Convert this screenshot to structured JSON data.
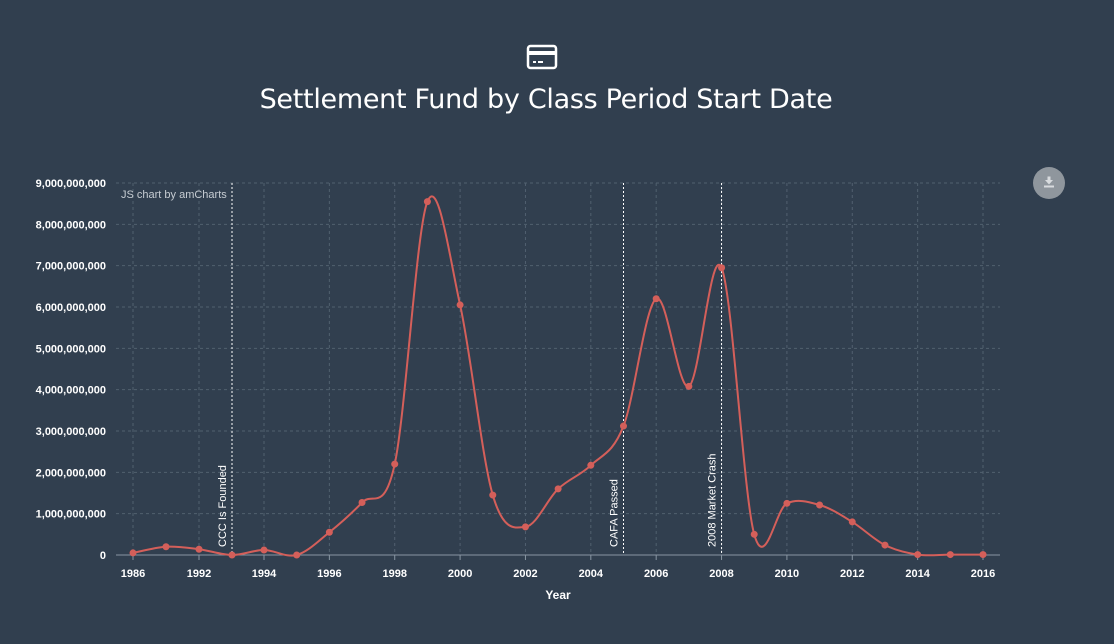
{
  "header": {
    "icon": "credit-card-icon",
    "title": "Settlement Fund by Class Period Start Date"
  },
  "toolbar": {
    "download_icon": "download-icon"
  },
  "credit_text": "JS chart by amCharts",
  "colors": {
    "background": "#313f4f",
    "line": "#d45f5a",
    "grid": "#51606f",
    "guide": "#ffffff"
  },
  "chart_data": {
    "type": "line",
    "title": "Settlement Fund by Class Period Start Date",
    "xlabel": "Year",
    "ylabel": "",
    "xlim": [
      1986,
      2016
    ],
    "ylim": [
      0,
      9000000000
    ],
    "smoothed": true,
    "grid": true,
    "x_ticks": [
      1986,
      1992,
      1994,
      1996,
      1998,
      2000,
      2002,
      2004,
      2006,
      2008,
      2010,
      2012,
      2014,
      2016
    ],
    "y_ticks": [
      0,
      1000000000,
      2000000000,
      3000000000,
      4000000000,
      5000000000,
      6000000000,
      7000000000,
      8000000000,
      9000000000
    ],
    "y_tick_labels": [
      "0",
      "1,000,000,000",
      "2,000,000,000",
      "3,000,000,000",
      "4,000,000,000",
      "5,000,000,000",
      "6,000,000,000",
      "7,000,000,000",
      "8,000,000,000",
      "9,000,000,000"
    ],
    "series": [
      {
        "points": [
          [
            1986,
            50000000
          ],
          [
            1987,
            200000000
          ],
          [
            1992,
            140000000
          ],
          [
            1993,
            0
          ],
          [
            1994,
            120000000
          ],
          [
            1995,
            0
          ],
          [
            1996,
            550000000
          ],
          [
            1997,
            1270000000
          ],
          [
            1998,
            2200000000
          ],
          [
            1999,
            8550000000
          ],
          [
            2000,
            6050000000
          ],
          [
            2001,
            1450000000
          ],
          [
            2002,
            680000000
          ],
          [
            2003,
            1600000000
          ],
          [
            2004,
            2170000000
          ],
          [
            2005,
            3120000000
          ],
          [
            2006,
            6200000000
          ],
          [
            2007,
            4080000000
          ],
          [
            2008,
            6950000000
          ],
          [
            2009,
            500000000
          ],
          [
            2010,
            1250000000
          ],
          [
            2011,
            1210000000
          ],
          [
            2012,
            800000000
          ],
          [
            2013,
            240000000
          ],
          [
            2014,
            10000000
          ],
          [
            2015,
            10000000
          ],
          [
            2016,
            10000000
          ]
        ]
      }
    ],
    "guides": [
      {
        "x": 1993,
        "label": "CCC Is Founded"
      },
      {
        "x": 2005,
        "label": "CAFA Passed"
      },
      {
        "x": 2008,
        "label": "2008 Market Crash"
      }
    ]
  }
}
